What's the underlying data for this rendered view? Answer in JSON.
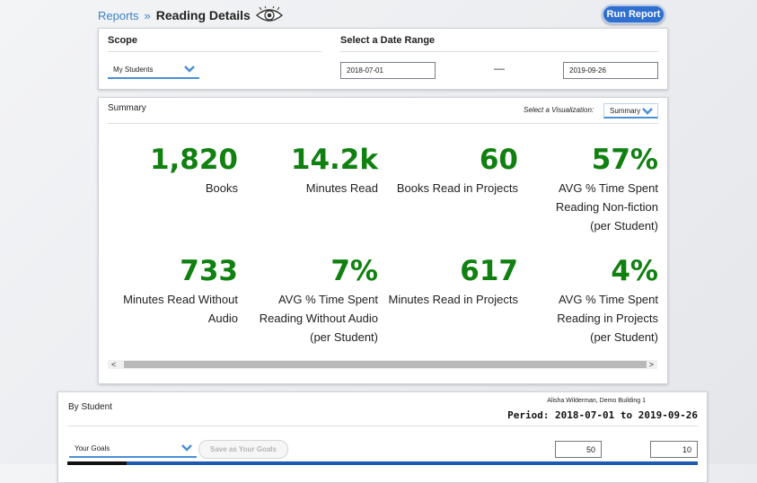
{
  "header": {
    "breadcrumb": "Reports",
    "separator": "»",
    "title": "Reading Details",
    "run_report_label": "Run Report"
  },
  "scope_panel": {
    "scope_label": "Scope",
    "scope_value": "My Students",
    "date_range_label": "Select a Date Range",
    "start_date": "2018-07-01",
    "dash": "—",
    "end_date": "2019-09-26"
  },
  "summary_panel": {
    "title": "Summary",
    "viz_label": "Select a Visualization:",
    "viz_value": "Summary",
    "stats": [
      {
        "value": "1,820",
        "label": "Books"
      },
      {
        "value": "14.2k",
        "label": "Minutes Read"
      },
      {
        "value": "60",
        "label": "Books Read in Projects"
      },
      {
        "value": "57%",
        "label": "AVG % Time Spent Reading Non-fiction (per Student)"
      },
      {
        "value": "733",
        "label": "Minutes Read Without Audio"
      },
      {
        "value": "7%",
        "label": "AVG % Time Spent Reading Without Audio (per Student)"
      },
      {
        "value": "617",
        "label": "Minutes Read in Projects"
      },
      {
        "value": "4%",
        "label": "AVG % Time Spent Reading in Projects (per Student)"
      }
    ],
    "scroll_left": "<",
    "scroll_right": ">"
  },
  "student_panel": {
    "title": "By Student",
    "user": "Alisha Wilderman, Demo Building 1",
    "period": "Period: 2018-07-01 to 2019-09-26",
    "goals_value": "Your Goals",
    "save_label": "Save as Your Goals",
    "goal_1": "50",
    "goal_2": "10"
  },
  "colors": {
    "accent_blue": "#3d82c4",
    "button_blue": "#2f6fd0",
    "stat_green": "#108010"
  },
  "icons": [
    "eye-icon",
    "chevron-down-icon",
    "chevron-left-icon",
    "chevron-right-icon"
  ]
}
